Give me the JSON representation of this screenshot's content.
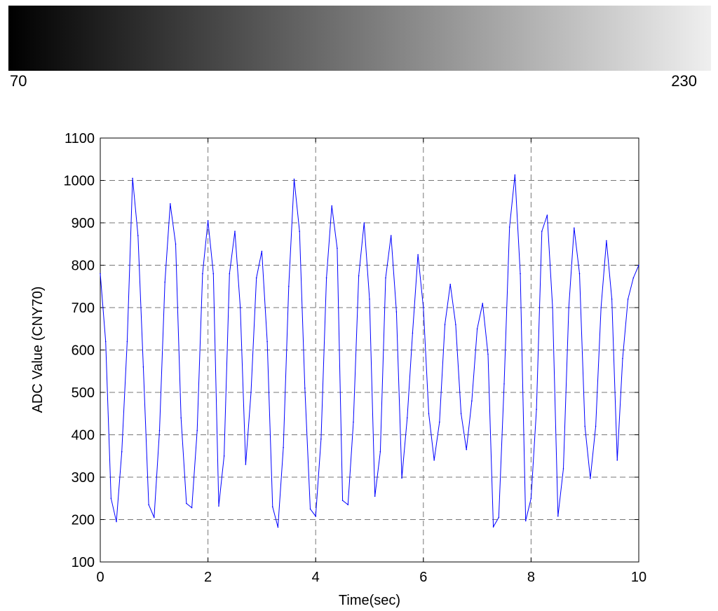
{
  "gradient_bar": {
    "min_label": "70",
    "max_label": "230",
    "colors": [
      "#000000",
      "#efefef"
    ]
  },
  "chart_data": {
    "type": "line",
    "xlabel": "Time(sec)",
    "ylabel": "ADC Value (CNY70)",
    "xlim": [
      0,
      10
    ],
    "ylim": [
      100,
      1100
    ],
    "xticks": [
      0,
      2,
      4,
      6,
      8,
      10
    ],
    "yticks": [
      100,
      200,
      300,
      400,
      500,
      600,
      700,
      800,
      900,
      1000,
      1100
    ],
    "grid": true,
    "series": [
      {
        "color": "#0000ff",
        "x": [
          0,
          0.1,
          0.2,
          0.3,
          0.4,
          0.5,
          0.6,
          0.7,
          0.8,
          0.9,
          1.0,
          1.1,
          1.2,
          1.3,
          1.4,
          1.5,
          1.6,
          1.7,
          1.8,
          1.9,
          2.0,
          2.1,
          2.2,
          2.3,
          2.4,
          2.5,
          2.6,
          2.7,
          2.8,
          2.9,
          3.0,
          3.1,
          3.2,
          3.3,
          3.4,
          3.5,
          3.6,
          3.7,
          3.8,
          3.9,
          4.0,
          4.1,
          4.2,
          4.3,
          4.4,
          4.5,
          4.6,
          4.7,
          4.8,
          4.9,
          5.0,
          5.1,
          5.2,
          5.3,
          5.4,
          5.5,
          5.6,
          5.7,
          5.8,
          5.9,
          6.0,
          6.1,
          6.2,
          6.3,
          6.4,
          6.5,
          6.6,
          6.7,
          6.8,
          6.9,
          7.0,
          7.1,
          7.2,
          7.3,
          7.4,
          7.5,
          7.6,
          7.7,
          7.8,
          7.9,
          8.0,
          8.1,
          8.2,
          8.3,
          8.4,
          8.5,
          8.6,
          8.7,
          8.8,
          8.9,
          9.0,
          9.1,
          9.2,
          9.3,
          9.4,
          9.5,
          9.6,
          9.7,
          9.8,
          9.9,
          10.0
        ],
        "y": [
          780,
          620,
          250,
          195,
          360,
          620,
          1005,
          870,
          560,
          235,
          205,
          410,
          760,
          945,
          850,
          440,
          238,
          228,
          410,
          780,
          905,
          780,
          232,
          350,
          780,
          880,
          700,
          330,
          500,
          770,
          833,
          620,
          230,
          182,
          370,
          750,
          1003,
          880,
          510,
          225,
          208,
          390,
          770,
          940,
          840,
          245,
          235,
          430,
          775,
          900,
          720,
          255,
          360,
          770,
          870,
          690,
          298,
          440,
          640,
          825,
          700,
          450,
          340,
          430,
          660,
          755,
          660,
          450,
          365,
          480,
          650,
          710,
          590,
          183,
          205,
          520,
          890,
          1013,
          780,
          197,
          250,
          460,
          880,
          918,
          700,
          208,
          320,
          700,
          888,
          780,
          420,
          297,
          420,
          700,
          858,
          720,
          340,
          580,
          720,
          770,
          800
        ]
      }
    ]
  }
}
